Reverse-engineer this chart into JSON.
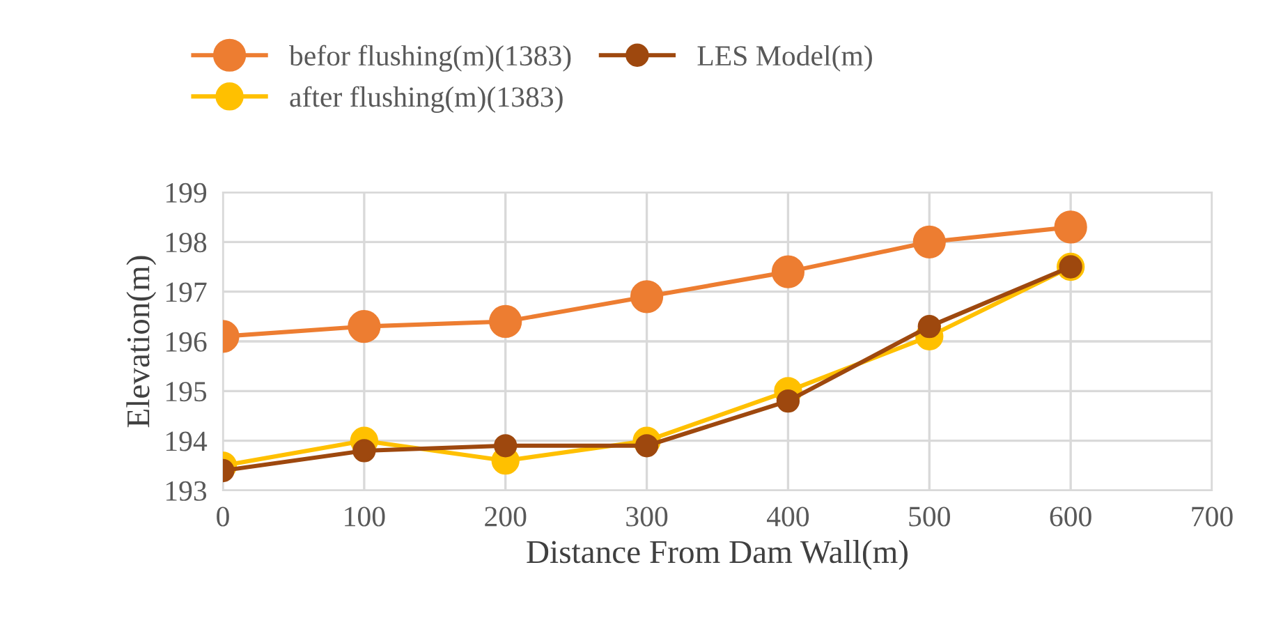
{
  "chart_data": {
    "type": "line",
    "xlabel": "Distance From Dam Wall(m)",
    "ylabel": "Elevation(m)",
    "x": [
      0,
      100,
      200,
      300,
      400,
      500,
      600
    ],
    "series": [
      {
        "name": "befor flushing(m)(1383)",
        "color": "#ed7d31",
        "values": [
          196.1,
          196.3,
          196.4,
          196.9,
          197.4,
          198.0,
          198.3
        ]
      },
      {
        "name": "after flushing(m)(1383)",
        "color": "#ffc000",
        "values": [
          193.5,
          194.0,
          193.6,
          194.0,
          195.0,
          196.1,
          197.5
        ]
      },
      {
        "name": "LES Model(m)",
        "color": "#9e480e",
        "values": [
          193.4,
          193.8,
          193.9,
          193.9,
          194.8,
          196.3,
          197.5
        ]
      }
    ],
    "xlim": [
      0,
      700
    ],
    "xticks": [
      0,
      100,
      200,
      300,
      400,
      500,
      600,
      700
    ],
    "ylim": [
      193,
      199
    ],
    "yticks": [
      193,
      194,
      195,
      196,
      197,
      198,
      199
    ],
    "grid": true,
    "legend": "top",
    "marker": "circle",
    "line_style": "solid"
  }
}
